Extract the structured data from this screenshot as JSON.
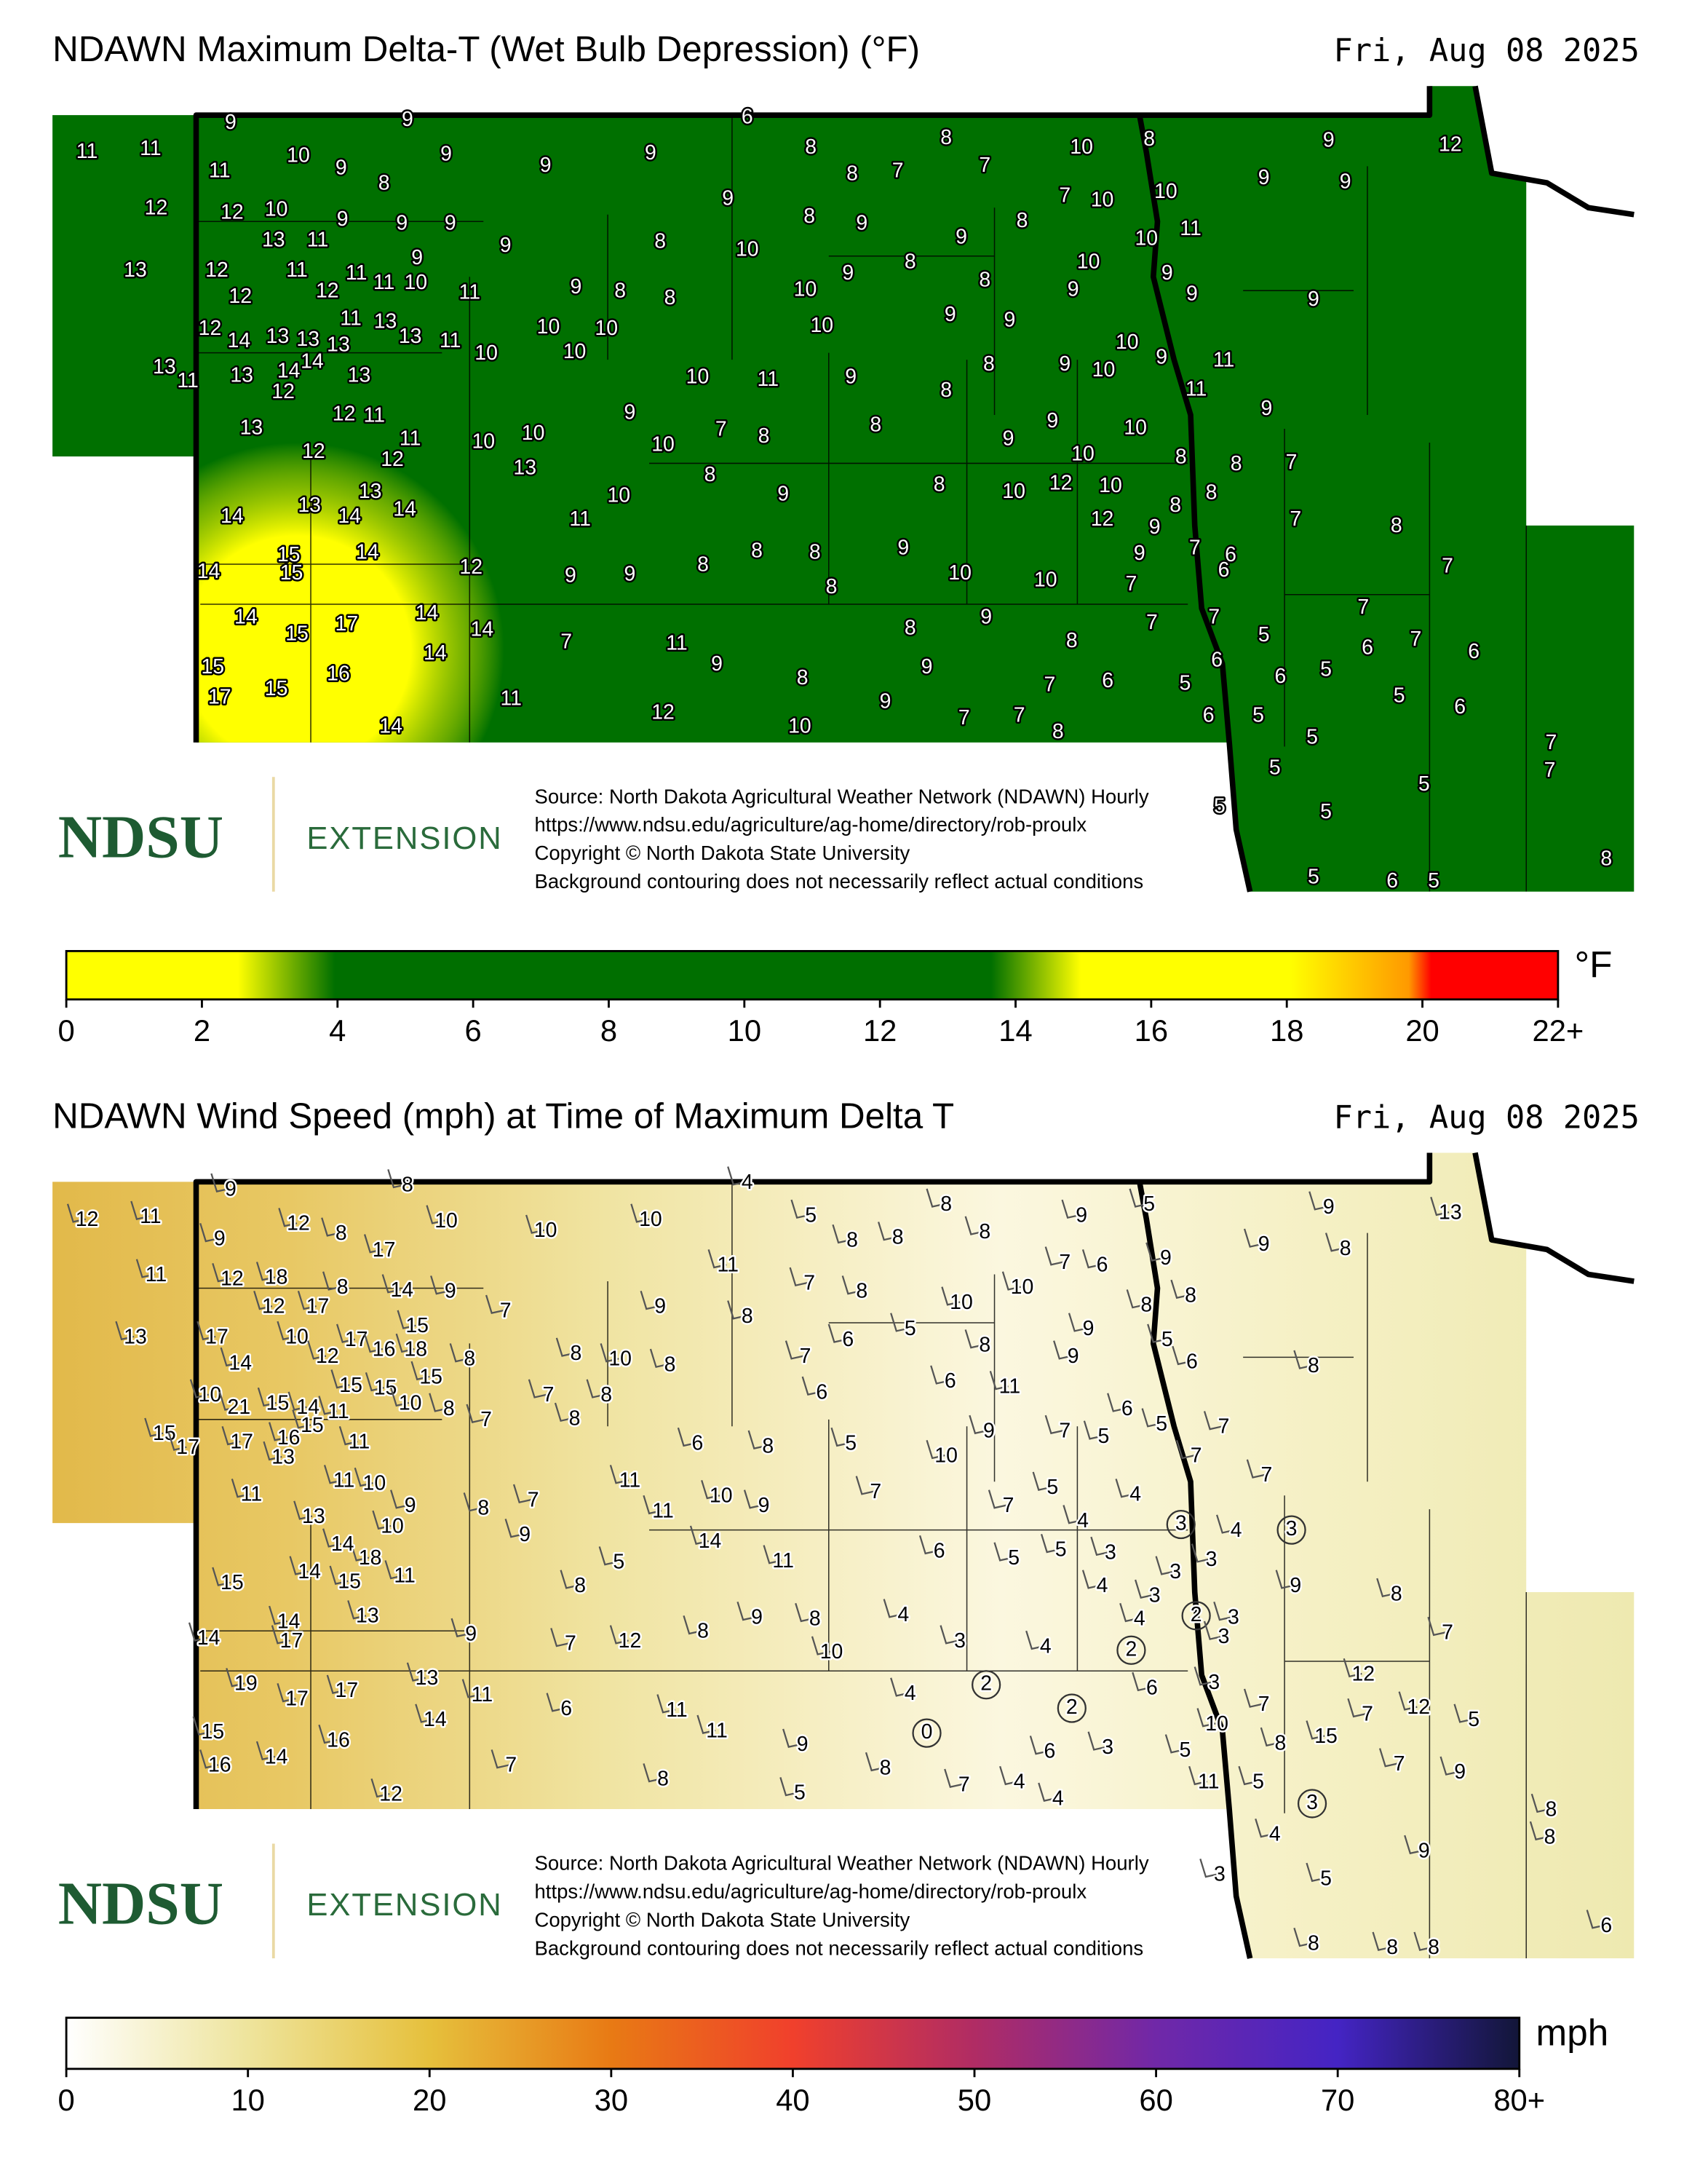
{
  "maps": [
    {
      "title": "NDAWN Maximum Delta-T (Wet Bulb Depression) (°F)",
      "date": "Fri, Aug 08 2025",
      "stations": [
        9,
        9,
        6,
        11,
        11,
        11,
        10,
        9,
        8,
        9,
        9,
        9,
        8,
        8,
        7,
        8,
        7,
        10,
        8,
        7,
        10,
        10,
        9,
        12,
        9,
        9,
        12,
        12,
        10,
        9,
        9,
        9,
        9,
        8,
        9,
        13,
        13,
        11,
        9,
        8,
        10,
        9,
        8,
        11,
        10,
        12,
        11,
        11,
        9,
        8,
        10,
        9,
        12,
        12,
        11,
        10,
        11,
        9,
        8,
        8,
        10,
        9,
        8,
        9,
        9,
        9,
        12,
        14,
        13,
        13,
        13,
        11,
        13,
        13,
        11,
        10,
        10,
        10,
        10,
        10,
        9,
        9,
        13,
        11,
        13,
        14,
        14,
        12,
        13,
        10,
        11,
        9,
        8,
        9,
        10,
        10,
        9,
        11,
        8,
        11,
        9,
        13,
        12,
        11,
        9,
        7,
        8,
        8,
        9,
        10,
        12,
        11,
        12,
        10,
        10,
        10,
        9,
        10,
        13,
        8,
        8,
        7,
        13,
        13,
        10,
        8,
        9,
        8,
        10,
        12,
        10,
        8,
        8,
        14,
        14,
        14,
        11,
        12,
        9,
        7,
        8,
        15,
        15,
        14,
        14,
        12,
        9,
        9,
        8,
        8,
        8,
        9,
        9,
        7,
        6,
        6,
        7,
        8,
        10,
        10,
        7,
        14,
        17,
        14,
        15,
        14,
        9,
        8,
        7,
        7,
        7,
        7,
        11,
        5,
        6,
        7,
        8,
        14,
        6,
        15,
        16,
        9,
        9,
        6,
        5,
        6,
        17,
        15,
        11,
        8,
        9,
        7,
        6,
        5,
        5,
        6,
        12,
        14,
        10,
        7,
        7,
        8,
        6,
        5,
        5,
        7,
        5,
        7,
        5,
        5,
        5,
        8,
        5,
        6,
        5
      ],
      "colorbar": {
        "lim": [
          0,
          22
        ],
        "ticks": [
          0,
          2,
          4,
          6,
          8,
          10,
          12,
          14,
          16,
          18,
          20,
          {
            "value": 22,
            "label": "22+"
          }
        ],
        "unit": "°F"
      },
      "footer": {
        "logo": "NDSU",
        "logo_text": "EXTENSION",
        "source": [
          "Source: North Dakota Agricultural Weather Network (NDAWN) Hourly",
          "https://www.ndsu.edu/agriculture/ag-home/directory/rob-proulx",
          "Copyright © North Dakota State University",
          "Background contouring does not necessarily reflect actual conditions"
        ]
      }
    },
    {
      "title": "NDAWN Wind Speed (mph) at Time of Maximum Delta T",
      "date": "Fri, Aug 08 2025",
      "stations": [
        9,
        8,
        4,
        12,
        11,
        9,
        12,
        8,
        17,
        10,
        10,
        10,
        5,
        8,
        8,
        8,
        8,
        9,
        5,
        7,
        6,
        9,
        9,
        13,
        9,
        8,
        11,
        12,
        18,
        8,
        14,
        9,
        11,
        7,
        8,
        13,
        12,
        17,
        7,
        9,
        8,
        10,
        10,
        8,
        8,
        17,
        10,
        17,
        15,
        5,
        9,
        5,
        14,
        12,
        16,
        18,
        8,
        8,
        10,
        8,
        7,
        6,
        8,
        9,
        6,
        8,
        10,
        21,
        15,
        14,
        11,
        15,
        15,
        10,
        15,
        8,
        7,
        7,
        8,
        8,
        6,
        6,
        11,
        15,
        17,
        17,
        16,
        15,
        13,
        11,
        6,
        8,
        5,
        9,
        7,
        5,
        6,
        5,
        7,
        10,
        7,
        7,
        11,
        11,
        10,
        11,
        10,
        9,
        7,
        5,
        4,
        13,
        9,
        10,
        8,
        7,
        11,
        7,
        4,
        9,
        3,
        4,
        3,
        18,
        14,
        14,
        5,
        14,
        11,
        6,
        5,
        5,
        3,
        3,
        3,
        15,
        15,
        11,
        8,
        4,
        3,
        2,
        9,
        8,
        14,
        17,
        13,
        14,
        9,
        7,
        12,
        8,
        9,
        8,
        4,
        4,
        3,
        3,
        7,
        10,
        3,
        4,
        2,
        19,
        17,
        13,
        17,
        11,
        2,
        4,
        6,
        3,
        12,
        6,
        11,
        7,
        7,
        12,
        2,
        14,
        5,
        15,
        16,
        11,
        0,
        10,
        15,
        8,
        16,
        14,
        7,
        9,
        8,
        6,
        3,
        5,
        7,
        9,
        8,
        12,
        5,
        7,
        4,
        4,
        11,
        5,
        3,
        8,
        4,
        8,
        9,
        3,
        5,
        6,
        8,
        8,
        8
      ],
      "colorbar": {
        "lim": [
          0,
          80
        ],
        "ticks": [
          0,
          10,
          20,
          30,
          40,
          50,
          60,
          70,
          {
            "value": 80,
            "label": "80+"
          }
        ],
        "unit": "mph"
      },
      "footer": {
        "logo": "NDSU",
        "logo_text": "EXTENSION",
        "source": [
          "Source: North Dakota Agricultural Weather Network (NDAWN) Hourly",
          "https://www.ndsu.edu/agriculture/ag-home/directory/rob-proulx",
          "Copyright © North Dakota State University",
          "Background contouring does not necessarily reflect actual conditions"
        ]
      }
    }
  ]
}
